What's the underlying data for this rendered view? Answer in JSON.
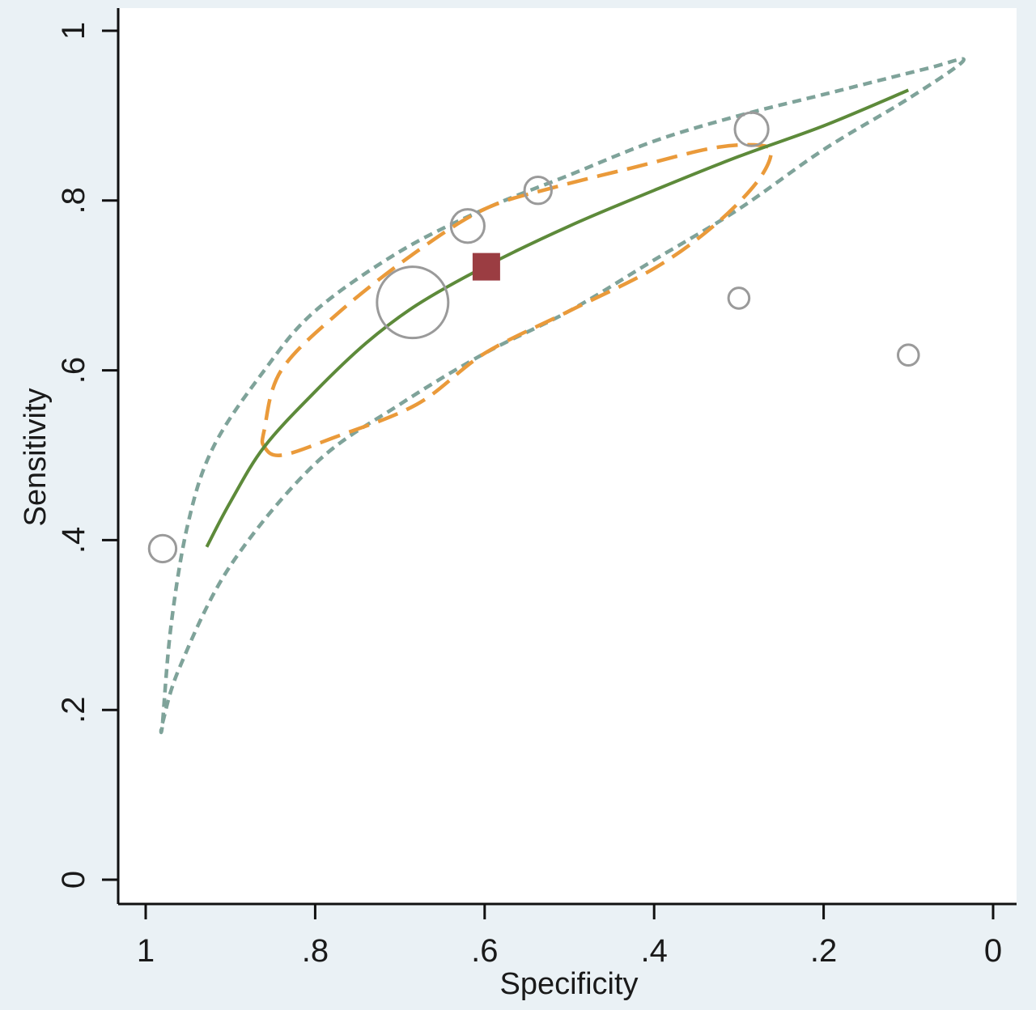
{
  "chart_data": {
    "type": "scatter",
    "title": "",
    "xlabel": "Specificity",
    "ylabel": "Sensitivity",
    "x_reversed": true,
    "xlim": [
      1,
      0
    ],
    "ylim": [
      0,
      1
    ],
    "x_ticks": [
      1,
      0.8,
      0.6,
      0.4,
      0.2,
      0
    ],
    "x_tick_labels": [
      "1",
      ".8",
      ".6",
      ".4",
      ".2",
      "0"
    ],
    "y_ticks": [
      0,
      0.2,
      0.4,
      0.6,
      0.8,
      1
    ],
    "y_tick_labels": [
      "0",
      ".2",
      ".4",
      ".6",
      ".8",
      "1"
    ],
    "grid": false,
    "legend": "none",
    "studies": [
      {
        "specificity": 0.98,
        "sensitivity": 0.39,
        "weight": 3
      },
      {
        "specificity": 0.685,
        "sensitivity": 0.68,
        "weight": 10
      },
      {
        "specificity": 0.62,
        "sensitivity": 0.77,
        "weight": 4
      },
      {
        "specificity": 0.537,
        "sensitivity": 0.812,
        "weight": 3
      },
      {
        "specificity": 0.285,
        "sensitivity": 0.884,
        "weight": 4
      },
      {
        "specificity": 0.3,
        "sensitivity": 0.685,
        "weight": 2
      },
      {
        "specificity": 0.1,
        "sensitivity": 0.618,
        "weight": 2
      }
    ],
    "summary_point": {
      "specificity": 0.598,
      "sensitivity": 0.722
    },
    "sroc_curve": {
      "color": "#5d8a3a",
      "points": [
        [
          0.928,
          0.392
        ],
        [
          0.9,
          0.445
        ],
        [
          0.86,
          0.51
        ],
        [
          0.8,
          0.575
        ],
        [
          0.74,
          0.632
        ],
        [
          0.68,
          0.677
        ],
        [
          0.6,
          0.722
        ],
        [
          0.5,
          0.77
        ],
        [
          0.4,
          0.812
        ],
        [
          0.3,
          0.852
        ],
        [
          0.2,
          0.888
        ],
        [
          0.1,
          0.93
        ]
      ]
    },
    "confidence_region": {
      "color": "#ea9a3a",
      "points": [
        [
          0.86,
          0.51
        ],
        [
          0.84,
          0.5
        ],
        [
          0.78,
          0.52
        ],
        [
          0.68,
          0.56
        ],
        [
          0.6,
          0.62
        ],
        [
          0.5,
          0.67
        ],
        [
          0.4,
          0.72
        ],
        [
          0.33,
          0.77
        ],
        [
          0.28,
          0.82
        ],
        [
          0.262,
          0.855
        ],
        [
          0.275,
          0.865
        ],
        [
          0.33,
          0.862
        ],
        [
          0.42,
          0.84
        ],
        [
          0.52,
          0.815
        ],
        [
          0.6,
          0.79
        ],
        [
          0.68,
          0.74
        ],
        [
          0.77,
          0.67
        ],
        [
          0.84,
          0.6
        ],
        [
          0.86,
          0.53
        ]
      ]
    },
    "prediction_region": {
      "color": "#7fa39a",
      "points": [
        [
          0.98,
          0.185
        ],
        [
          0.96,
          0.25
        ],
        [
          0.9,
          0.37
        ],
        [
          0.8,
          0.49
        ],
        [
          0.7,
          0.56
        ],
        [
          0.6,
          0.62
        ],
        [
          0.5,
          0.67
        ],
        [
          0.4,
          0.73
        ],
        [
          0.3,
          0.79
        ],
        [
          0.2,
          0.86
        ],
        [
          0.1,
          0.92
        ],
        [
          0.035,
          0.965
        ],
        [
          0.08,
          0.955
        ],
        [
          0.2,
          0.925
        ],
        [
          0.3,
          0.9
        ],
        [
          0.4,
          0.87
        ],
        [
          0.5,
          0.83
        ],
        [
          0.6,
          0.79
        ],
        [
          0.7,
          0.74
        ],
        [
          0.8,
          0.67
        ],
        [
          0.86,
          0.6
        ],
        [
          0.92,
          0.51
        ],
        [
          0.95,
          0.42
        ],
        [
          0.97,
          0.3
        ],
        [
          0.98,
          0.185
        ]
      ]
    },
    "colors": {
      "study_marker": "#9a9a9a",
      "summary_marker": "#9b3d42",
      "axis": "#111111",
      "plot_background": "#ffffff",
      "page_background": "#eaf1f5"
    }
  }
}
